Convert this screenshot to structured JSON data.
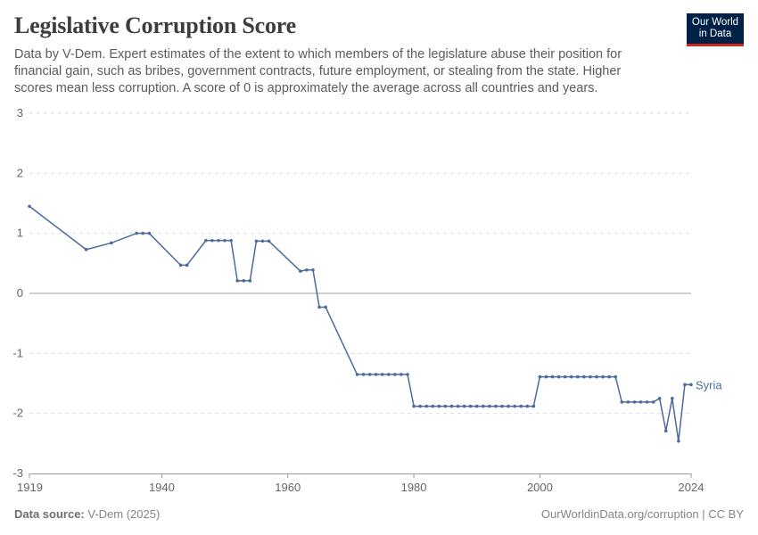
{
  "header": {
    "title": "Legislative Corruption Score",
    "subtitle": "Data by V-Dem. Expert estimates of the extent to which members of the legislature abuse their position for financial gain, such as bribes, government contracts, future employment, or stealing from the state. Higher scores mean less corruption. A score of 0 is approximately the average across all countries and years.",
    "logo_line1": "Our World",
    "logo_line2": "in Data"
  },
  "footer": {
    "source_label": "Data source:",
    "source_value": "V-Dem (2025)",
    "credit": "OurWorldinData.org/corruption | CC BY"
  },
  "colors": {
    "series": "#4c6a9c",
    "grid": "#dddddd",
    "zero_line": "#a1a1a1",
    "axis_text": "#666666"
  },
  "chart_data": {
    "type": "line",
    "title": "Legislative Corruption Score",
    "xlabel": "",
    "ylabel": "",
    "xlim": [
      1919,
      2024
    ],
    "ylim": [
      -3,
      3
    ],
    "x_ticks": [
      "1919",
      "1940",
      "1960",
      "1980",
      "2000",
      "2024"
    ],
    "y_ticks": [
      "3",
      "2",
      "1",
      "0",
      "-1",
      "-2",
      "-3"
    ],
    "grid": "horizontal dashed",
    "series": [
      {
        "name": "Syria",
        "points": [
          [
            1919,
            1.45
          ],
          [
            1928,
            0.73
          ],
          [
            1932,
            0.84
          ],
          [
            1936,
            1.0
          ],
          [
            1937,
            1.0
          ],
          [
            1938,
            1.0
          ],
          [
            1943,
            0.47
          ],
          [
            1944,
            0.47
          ],
          [
            1947,
            0.88
          ],
          [
            1948,
            0.88
          ],
          [
            1949,
            0.88
          ],
          [
            1950,
            0.88
          ],
          [
            1951,
            0.88
          ],
          [
            1952,
            0.21
          ],
          [
            1953,
            0.21
          ],
          [
            1954,
            0.21
          ],
          [
            1955,
            0.87
          ],
          [
            1956,
            0.87
          ],
          [
            1957,
            0.87
          ],
          [
            1962,
            0.37
          ],
          [
            1963,
            0.39
          ],
          [
            1964,
            0.39
          ],
          [
            1965,
            -0.23
          ],
          [
            1966,
            -0.23
          ],
          [
            1971,
            -1.35
          ],
          [
            1972,
            -1.35
          ],
          [
            1973,
            -1.35
          ],
          [
            1974,
            -1.35
          ],
          [
            1975,
            -1.35
          ],
          [
            1976,
            -1.35
          ],
          [
            1977,
            -1.35
          ],
          [
            1978,
            -1.35
          ],
          [
            1979,
            -1.35
          ],
          [
            1980,
            -1.88
          ],
          [
            1981,
            -1.88
          ],
          [
            1982,
            -1.88
          ],
          [
            1983,
            -1.88
          ],
          [
            1984,
            -1.88
          ],
          [
            1985,
            -1.88
          ],
          [
            1986,
            -1.88
          ],
          [
            1987,
            -1.88
          ],
          [
            1988,
            -1.88
          ],
          [
            1989,
            -1.88
          ],
          [
            1990,
            -1.88
          ],
          [
            1991,
            -1.88
          ],
          [
            1992,
            -1.88
          ],
          [
            1993,
            -1.88
          ],
          [
            1994,
            -1.88
          ],
          [
            1995,
            -1.88
          ],
          [
            1996,
            -1.88
          ],
          [
            1997,
            -1.88
          ],
          [
            1998,
            -1.88
          ],
          [
            1999,
            -1.88
          ],
          [
            2000,
            -1.39
          ],
          [
            2001,
            -1.39
          ],
          [
            2002,
            -1.39
          ],
          [
            2003,
            -1.39
          ],
          [
            2004,
            -1.39
          ],
          [
            2005,
            -1.39
          ],
          [
            2006,
            -1.39
          ],
          [
            2007,
            -1.39
          ],
          [
            2008,
            -1.39
          ],
          [
            2009,
            -1.39
          ],
          [
            2010,
            -1.39
          ],
          [
            2011,
            -1.39
          ],
          [
            2012,
            -1.39
          ],
          [
            2013,
            -1.81
          ],
          [
            2014,
            -1.81
          ],
          [
            2015,
            -1.81
          ],
          [
            2016,
            -1.81
          ],
          [
            2017,
            -1.81
          ],
          [
            2018,
            -1.81
          ],
          [
            2019,
            -1.75
          ],
          [
            2020,
            -2.29
          ],
          [
            2021,
            -1.75
          ],
          [
            2022,
            -2.46
          ],
          [
            2023,
            -1.52
          ],
          [
            2024,
            -1.52
          ]
        ]
      }
    ]
  }
}
